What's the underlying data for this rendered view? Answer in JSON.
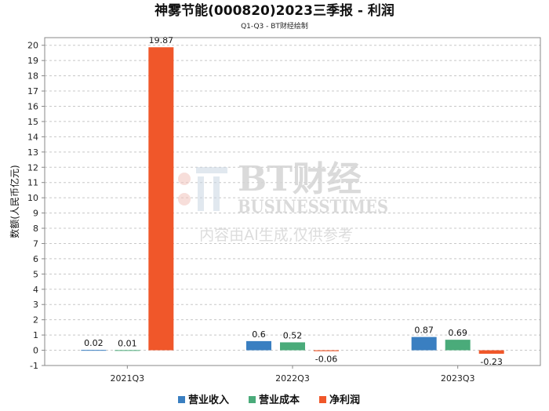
{
  "chart_data": {
    "type": "bar",
    "title": "神雾节能(000820)2023三季报 - 利润",
    "subtitle": "Q1-Q3 - BT财经绘制",
    "ylabel": "数额(人民币亿元)",
    "xlabel": "",
    "categories": [
      "2021Q3",
      "2022Q3",
      "2023Q3"
    ],
    "ylim": [
      -1,
      20.5
    ],
    "yticks": [
      -1,
      0,
      1,
      2,
      3,
      4,
      5,
      6,
      7,
      8,
      9,
      10,
      11,
      12,
      13,
      14,
      15,
      16,
      17,
      18,
      19,
      20
    ],
    "grid": true,
    "legend_position": "bottom",
    "series": [
      {
        "name": "营业收入",
        "color": "#3a7fc1",
        "values": [
          0.02,
          0.6,
          0.87
        ],
        "labels": [
          "0.02",
          "0.6",
          "0.87"
        ]
      },
      {
        "name": "营业成本",
        "color": "#4aab7a",
        "values": [
          0.01,
          0.52,
          0.69
        ],
        "labels": [
          "0.01",
          "0.52",
          "0.69"
        ]
      },
      {
        "name": "净利润",
        "color": "#f0572a",
        "values": [
          19.87,
          -0.06,
          -0.23
        ],
        "labels": [
          "19.87",
          "-0.06",
          "-0.23"
        ]
      }
    ]
  },
  "watermark": {
    "logo_text": "BT财经",
    "english": "BUSINESSTIMES",
    "notice": "内容由AI生成,仅供参考"
  }
}
